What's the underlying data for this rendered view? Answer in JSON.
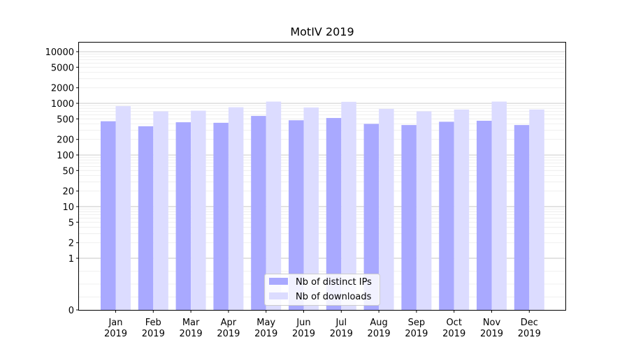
{
  "chart_data": {
    "type": "bar",
    "title": "MotIV 2019",
    "xlabel": "",
    "ylabel": "",
    "yscale": "symlog",
    "ylim": [
      0,
      15000
    ],
    "grid": "horizontal, major and minor",
    "legend_position": "bottom-center",
    "categories": [
      [
        "Jan",
        "2019"
      ],
      [
        "Feb",
        "2019"
      ],
      [
        "Mar",
        "2019"
      ],
      [
        "Apr",
        "2019"
      ],
      [
        "May",
        "2019"
      ],
      [
        "Jun",
        "2019"
      ],
      [
        "Jul",
        "2019"
      ],
      [
        "Aug",
        "2019"
      ],
      [
        "Sep",
        "2019"
      ],
      [
        "Oct",
        "2019"
      ],
      [
        "Nov",
        "2019"
      ],
      [
        "Dec",
        "2019"
      ]
    ],
    "y_ticks": [
      "0",
      "1",
      "2",
      "5",
      "10",
      "20",
      "50",
      "100",
      "200",
      "500",
      "1000",
      "2000",
      "5000",
      "10000"
    ],
    "series": [
      {
        "name": "Nb of distinct IPs",
        "color": "#a9a9ff",
        "values": [
          450,
          360,
          430,
          420,
          570,
          470,
          520,
          400,
          380,
          440,
          460,
          380
        ]
      },
      {
        "name": "Nb of downloads",
        "color": "#dcdcff",
        "values": [
          880,
          700,
          720,
          840,
          1080,
          830,
          1070,
          780,
          700,
          760,
          1080,
          760
        ]
      }
    ]
  }
}
